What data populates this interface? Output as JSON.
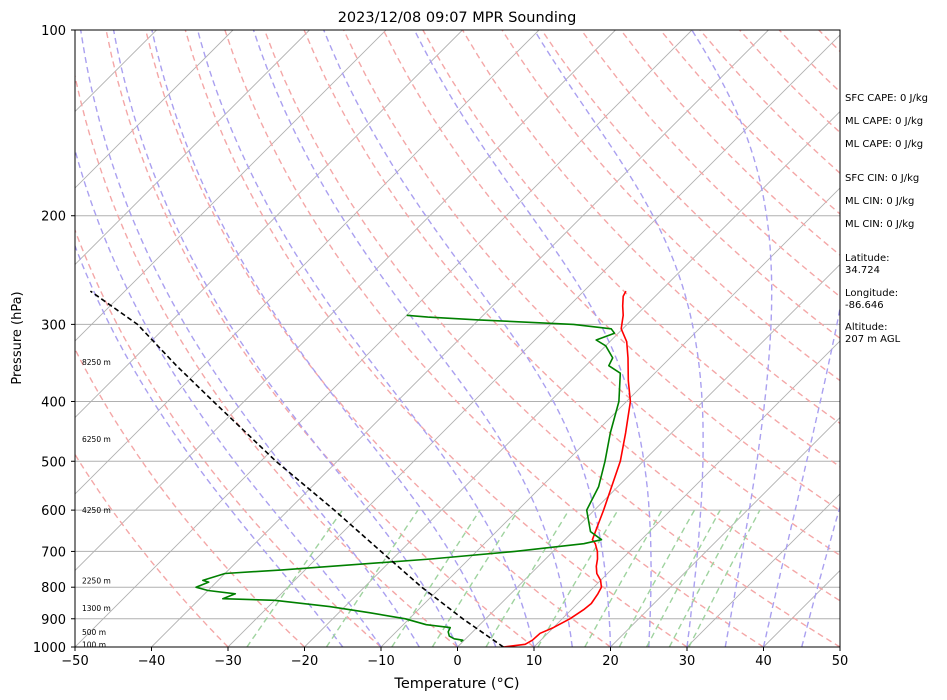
{
  "chart_data": {
    "type": "line",
    "title": "2023/12/08 09:07 MPR Sounding",
    "xlabel": "Temperature (°C)",
    "ylabel": "Pressure (hPa)",
    "xlim": [
      -50,
      50
    ],
    "ylim": [
      1000,
      100
    ],
    "yscale": "log",
    "skew": "45-degree isotherms",
    "xticks": [
      "−50",
      "−40",
      "−30",
      "−20",
      "−10",
      "0",
      "10",
      "20",
      "30",
      "40",
      "50"
    ],
    "yticks": [
      "100",
      "200",
      "300",
      "400",
      "500",
      "600",
      "700",
      "800",
      "900",
      "1000"
    ],
    "height_labels": [
      {
        "label": "100 m",
        "p": 990
      },
      {
        "label": "500 m",
        "p": 945
      },
      {
        "label": "1300 m",
        "p": 865
      },
      {
        "label": "2250 m",
        "p": 780
      },
      {
        "label": "4250 m",
        "p": 600
      },
      {
        "label": "6250 m",
        "p": 460
      },
      {
        "label": "8250 m",
        "p": 345
      }
    ],
    "reference_lines": {
      "isotherms": {
        "color": "#b0b0b0"
      },
      "dry_adiabats": {
        "color": "#f4a7a7"
      },
      "moist_adiabats": {
        "color": "#aaa0f0"
      },
      "mixing_ratios": {
        "color": "#9fd39f"
      }
    },
    "series": [
      {
        "role": "temperature",
        "color": "#ff0000",
        "points": [
          [
            1000,
            6.0
          ],
          [
            990,
            8.5
          ],
          [
            975,
            8.9
          ],
          [
            950,
            9.0
          ],
          [
            930,
            10.0
          ],
          [
            900,
            11.0
          ],
          [
            870,
            11.6
          ],
          [
            850,
            11.8
          ],
          [
            820,
            11.4
          ],
          [
            800,
            11.0
          ],
          [
            780,
            10.0
          ],
          [
            760,
            8.6
          ],
          [
            740,
            7.6
          ],
          [
            720,
            6.8
          ],
          [
            700,
            5.8
          ],
          [
            680,
            4.5
          ],
          [
            670,
            3.6
          ],
          [
            640,
            2.6
          ],
          [
            600,
            1.2
          ],
          [
            550,
            -0.8
          ],
          [
            500,
            -3.0
          ],
          [
            450,
            -6.0
          ],
          [
            400,
            -9.5
          ],
          [
            370,
            -12.5
          ],
          [
            340,
            -15.5
          ],
          [
            320,
            -17.8
          ],
          [
            305,
            -20.2
          ],
          [
            290,
            -21.7
          ],
          [
            280,
            -23.0
          ],
          [
            270,
            -24.2
          ],
          [
            265,
            -24.5
          ]
        ]
      },
      {
        "role": "dewpoint",
        "color": "#008000",
        "points": [
          [
            980,
            -0.3
          ],
          [
            975,
            -0.2
          ],
          [
            970,
            -1.5
          ],
          [
            960,
            -2.5
          ],
          [
            945,
            -3.2
          ],
          [
            930,
            -3.5
          ],
          [
            920,
            -7.0
          ],
          [
            900,
            -10.5
          ],
          [
            880,
            -16.0
          ],
          [
            860,
            -22.0
          ],
          [
            840,
            -30.0
          ],
          [
            835,
            -37.0
          ],
          [
            820,
            -36.0
          ],
          [
            810,
            -40.0
          ],
          [
            800,
            -42.0
          ],
          [
            785,
            -41.0
          ],
          [
            780,
            -42.0
          ],
          [
            760,
            -40.0
          ],
          [
            750,
            -33.0
          ],
          [
            720,
            -15.0
          ],
          [
            700,
            -5.0
          ],
          [
            680,
            3.0
          ],
          [
            670,
            4.8
          ],
          [
            650,
            2.3
          ],
          [
            600,
            -1.0
          ],
          [
            550,
            -2.5
          ],
          [
            500,
            -5.0
          ],
          [
            450,
            -8.0
          ],
          [
            400,
            -11.0
          ],
          [
            360,
            -14.5
          ],
          [
            350,
            -17.0
          ],
          [
            340,
            -17.5
          ],
          [
            325,
            -20.0
          ],
          [
            318,
            -22.0
          ],
          [
            310,
            -20.5
          ],
          [
            305,
            -21.5
          ],
          [
            300,
            -27.0
          ],
          [
            295,
            -40.0
          ],
          [
            292,
            -47.0
          ],
          [
            290,
            -50.0
          ]
        ]
      },
      {
        "role": "parcel",
        "color": "#000000",
        "style": "dashed",
        "points": [
          [
            1000,
            6.0
          ],
          [
            900,
            -3.0
          ],
          [
            800,
            -12.5
          ],
          [
            700,
            -22.5
          ],
          [
            600,
            -34.0
          ],
          [
            500,
            -48.0
          ],
          [
            400,
            -64.0
          ],
          [
            350,
            -73.5
          ],
          [
            300,
            -84.0
          ],
          [
            265,
            -94.5
          ]
        ]
      }
    ]
  },
  "side_panel": {
    "sfc_cape": "SFC CAPE: 0 J/kg",
    "ml_cape_1": "ML CAPE: 0 J/kg",
    "ml_cape_2": "ML CAPE: 0 J/kg",
    "sfc_cin": "SFC CIN: 0 J/kg",
    "ml_cin_1": "ML CIN: 0 J/kg",
    "ml_cin_2": "ML CIN: 0 J/kg",
    "latitude": "Latitude:\n34.724",
    "longitude": "Longitude:\n-86.646",
    "altitude": "Altitude:\n207 m AGL"
  }
}
